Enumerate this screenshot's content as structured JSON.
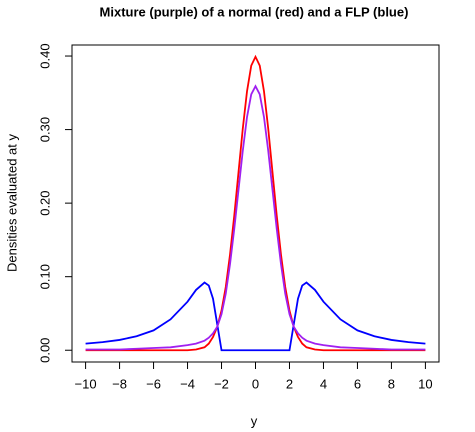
{
  "chart_data": {
    "type": "line",
    "title": "Mixture (purple) of a normal (red) and a FLP (blue)",
    "x_label": "y",
    "y_label": "Densities evaluated at y",
    "x": [
      -10,
      -9,
      -8,
      -7,
      -6,
      -5,
      -4,
      -3.5,
      -3,
      -2.75,
      -2.5,
      -2.25,
      -2,
      -1.75,
      -1.5,
      -1.25,
      -1,
      -0.75,
      -0.5,
      -0.25,
      0,
      0.25,
      0.5,
      0.75,
      1,
      1.25,
      1.5,
      1.75,
      2,
      2.25,
      2.5,
      2.75,
      3,
      3.5,
      4,
      5,
      6,
      7,
      8,
      9,
      10
    ],
    "series": [
      {
        "name": "normal",
        "color": "#ff0000",
        "values": [
          0,
          0,
          0,
          0,
          0,
          0,
          0,
          0.001,
          0.004,
          0.009,
          0.018,
          0.032,
          0.054,
          0.086,
          0.13,
          0.183,
          0.242,
          0.301,
          0.352,
          0.387,
          0.399,
          0.387,
          0.352,
          0.301,
          0.242,
          0.183,
          0.13,
          0.086,
          0.054,
          0.032,
          0.018,
          0.009,
          0.004,
          0.001,
          0,
          0,
          0,
          0,
          0,
          0,
          0
        ]
      },
      {
        "name": "FLP",
        "color": "#0000ff",
        "values": [
          0.009,
          0.011,
          0.014,
          0.019,
          0.027,
          0.042,
          0.066,
          0.082,
          0.092,
          0.088,
          0.07,
          0.035,
          0,
          0,
          0,
          0,
          0,
          0,
          0,
          0,
          0,
          0,
          0,
          0,
          0,
          0,
          0,
          0,
          0,
          0.035,
          0.07,
          0.088,
          0.092,
          0.082,
          0.066,
          0.042,
          0.027,
          0.019,
          0.014,
          0.011,
          0.009
        ]
      },
      {
        "name": "mixture",
        "color": "#a020f0",
        "values": [
          0.001,
          0.001,
          0.001,
          0.002,
          0.003,
          0.004,
          0.007,
          0.009,
          0.013,
          0.017,
          0.023,
          0.032,
          0.049,
          0.077,
          0.117,
          0.165,
          0.218,
          0.271,
          0.317,
          0.348,
          0.359,
          0.348,
          0.317,
          0.271,
          0.218,
          0.165,
          0.117,
          0.077,
          0.049,
          0.032,
          0.023,
          0.017,
          0.013,
          0.009,
          0.007,
          0.004,
          0.003,
          0.002,
          0.001,
          0.001,
          0.001
        ]
      }
    ],
    "xlim": [
      -10.8,
      10.8
    ],
    "ylim": [
      -0.016,
      0.415
    ],
    "xticks": [
      {
        "value": -10,
        "label": "−10"
      },
      {
        "value": -8,
        "label": "−8"
      },
      {
        "value": -6,
        "label": "−6"
      },
      {
        "value": -4,
        "label": "−4"
      },
      {
        "value": -2,
        "label": "−2"
      },
      0,
      2,
      4,
      6,
      8,
      10
    ],
    "yticks": [
      {
        "value": 0,
        "label": "0.00"
      },
      {
        "value": 0.1,
        "label": "0.10"
      },
      {
        "value": 0.2,
        "label": "0.20"
      },
      {
        "value": 0.3,
        "label": "0.30"
      },
      {
        "value": 0.4,
        "label": "0.40"
      }
    ]
  }
}
